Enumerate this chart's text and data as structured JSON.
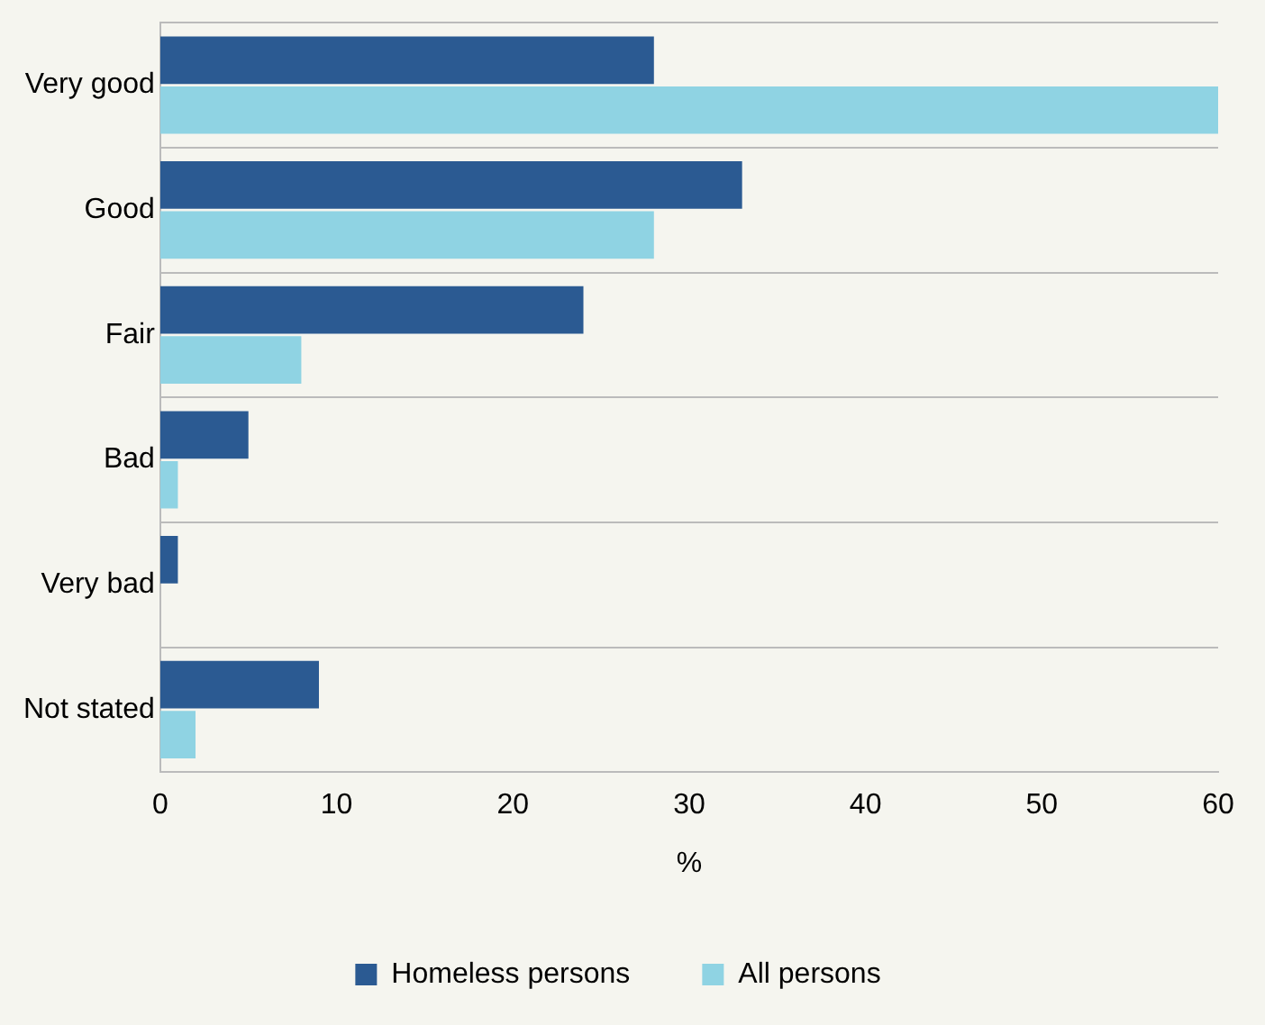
{
  "chart_data": {
    "type": "bar",
    "orientation": "horizontal",
    "categories": [
      "Very good",
      "Good",
      "Fair",
      "Bad",
      "Very bad",
      "Not stated"
    ],
    "series": [
      {
        "name": "Homeless persons",
        "color": "#2b5a92",
        "values": [
          28,
          33,
          24,
          5,
          1,
          9
        ]
      },
      {
        "name": "All persons",
        "color": "#8fd3e3",
        "values": [
          60,
          28,
          8,
          1,
          0,
          2
        ]
      }
    ],
    "xlim": [
      0,
      60
    ],
    "xticks": [
      0,
      10,
      20,
      30,
      40,
      50,
      60
    ],
    "xlabel": "%",
    "grid": "y",
    "legend": "bottom"
  }
}
